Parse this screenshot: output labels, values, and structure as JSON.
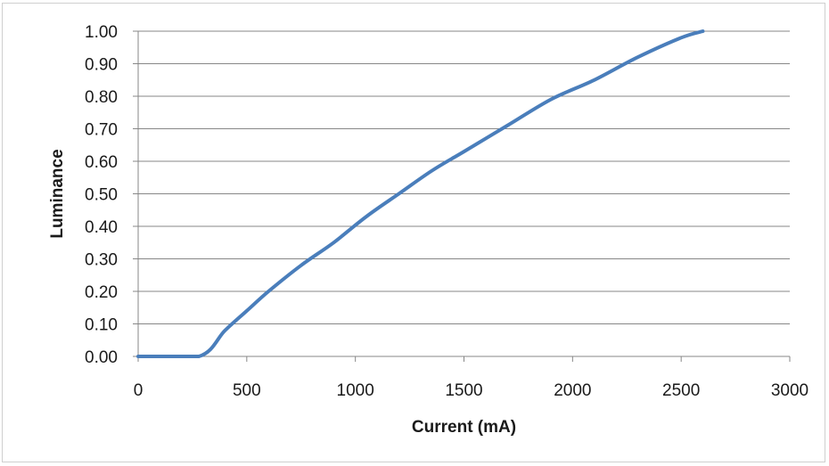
{
  "chart_data": {
    "type": "line",
    "title": "",
    "xlabel": "Current (mA)",
    "ylabel": "Luminance",
    "xlim": [
      0,
      3000
    ],
    "ylim": [
      0,
      1
    ],
    "x_ticks": [
      "0",
      "500",
      "1000",
      "1500",
      "2000",
      "2500",
      "3000"
    ],
    "x_tick_values": [
      0,
      500,
      1000,
      1500,
      2000,
      2500,
      3000
    ],
    "y_ticks": [
      "0.00",
      "0.10",
      "0.20",
      "0.30",
      "0.40",
      "0.50",
      "0.60",
      "0.70",
      "0.80",
      "0.90",
      "1.00"
    ],
    "y_tick_values": [
      0,
      0.1,
      0.2,
      0.3,
      0.4,
      0.5,
      0.6,
      0.7,
      0.8,
      0.9,
      1.0
    ],
    "grid": "horizontal",
    "legend": "none",
    "series": [
      {
        "color": "#4a7ebb",
        "x": [
          0,
          280,
          400,
          500,
          600,
          750,
          900,
          1050,
          1200,
          1350,
          1500,
          1700,
          1900,
          2100,
          2300,
          2500,
          2600
        ],
        "y": [
          0.0,
          0.0,
          0.08,
          0.14,
          0.2,
          0.28,
          0.35,
          0.43,
          0.5,
          0.57,
          0.63,
          0.71,
          0.79,
          0.85,
          0.92,
          0.98,
          1.0
        ]
      }
    ]
  }
}
